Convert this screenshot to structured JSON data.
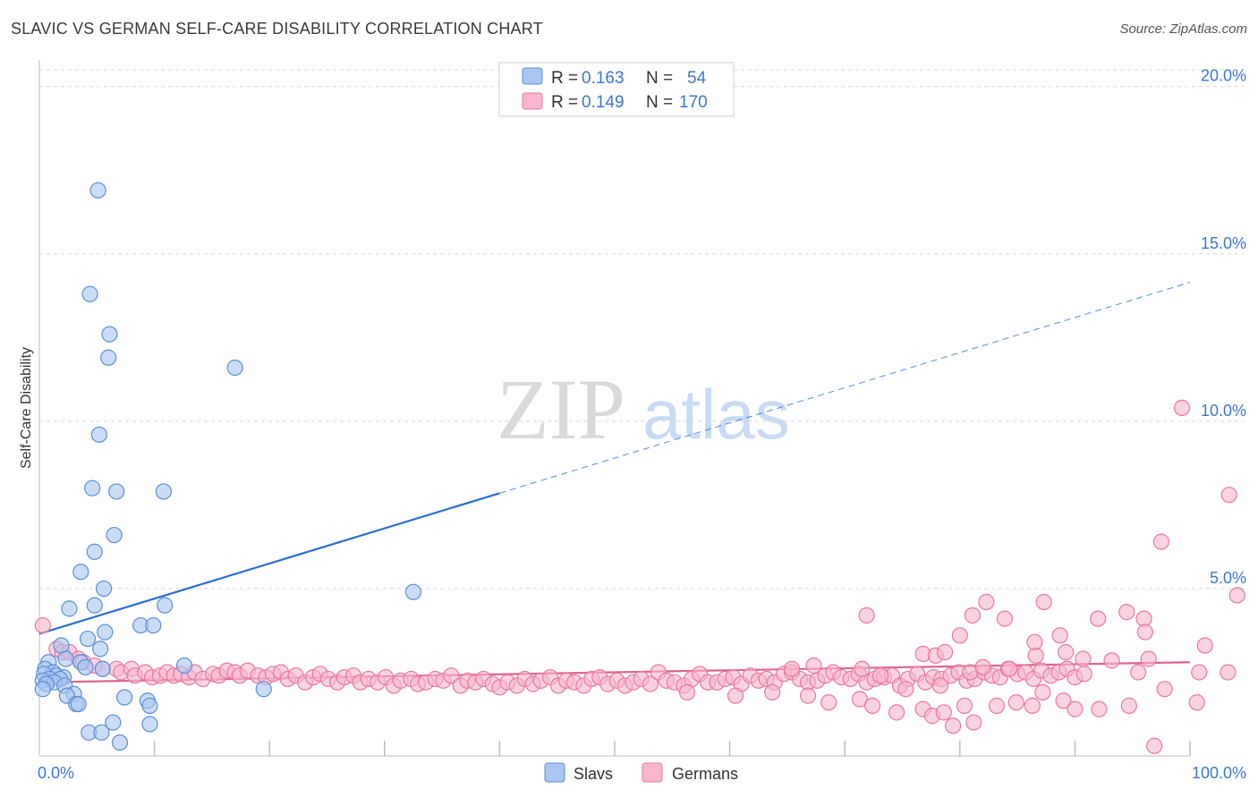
{
  "header": {
    "title": "SLAVIC VS GERMAN SELF-CARE DISABILITY CORRELATION CHART",
    "source": "Source: ZipAtlas.com"
  },
  "watermark": {
    "zip": "ZIP",
    "atlas": "atlas"
  },
  "stats": {
    "slavs": {
      "r_label": "R =",
      "r_value": "0.163",
      "n_label": "N =",
      "n_value": "54"
    },
    "germans": {
      "r_label": "R =",
      "r_value": "0.149",
      "n_label": "N =",
      "n_value": "170"
    }
  },
  "legend": {
    "slavs": "Slavs",
    "germans": "Germans"
  },
  "colors": {
    "slavs_fill": "#a9c7f0",
    "slavs_stroke": "#5b8fd6",
    "slavs_line": "#2a6fcf",
    "germans_fill": "#f7b6cb",
    "germans_stroke": "#e8799e",
    "germans_line": "#e0648e",
    "tick_text": "#3b78d0",
    "grid": "#d8d8d8"
  },
  "chart_data": {
    "type": "scatter",
    "title": "SLAVIC VS GERMAN SELF-CARE DISABILITY CORRELATION CHART",
    "xlabel": "",
    "ylabel": "Self-Care Disability",
    "xlim": [
      0,
      100
    ],
    "ylim": [
      0,
      20.5
    ],
    "x_tick_labels": [
      {
        "value": 0,
        "label": "0.0%"
      },
      {
        "value": 100,
        "label": "100.0%"
      }
    ],
    "y_ticks": [
      {
        "value": 5,
        "label": "5.0%"
      },
      {
        "value": 10,
        "label": "10.0%"
      },
      {
        "value": 15,
        "label": "15.0%"
      },
      {
        "value": 20,
        "label": "20.0%"
      }
    ],
    "series": [
      {
        "name": "Slavs",
        "trend": {
          "x0": 0,
          "y0": 3.65,
          "x1": 40,
          "y1": 7.85,
          "dash_x1": 100,
          "dash_y1": 14.15
        },
        "points": [
          [
            5.1,
            16.9
          ],
          [
            4.4,
            13.8
          ],
          [
            6.1,
            12.6
          ],
          [
            6.0,
            11.9
          ],
          [
            17.0,
            11.6
          ],
          [
            5.2,
            9.6
          ],
          [
            4.6,
            8.0
          ],
          [
            6.7,
            7.9
          ],
          [
            10.8,
            7.9
          ],
          [
            6.5,
            6.6
          ],
          [
            4.8,
            6.1
          ],
          [
            3.6,
            5.5
          ],
          [
            5.6,
            5.0
          ],
          [
            32.5,
            4.9
          ],
          [
            2.6,
            4.4
          ],
          [
            4.8,
            4.5
          ],
          [
            10.9,
            4.5
          ],
          [
            8.8,
            3.9
          ],
          [
            9.9,
            3.9
          ],
          [
            5.7,
            3.7
          ],
          [
            4.2,
            3.5
          ],
          [
            1.9,
            3.3
          ],
          [
            5.3,
            3.2
          ],
          [
            0.8,
            2.8
          ],
          [
            2.3,
            2.9
          ],
          [
            3.6,
            2.8
          ],
          [
            12.6,
            2.7
          ],
          [
            0.5,
            2.6
          ],
          [
            1.2,
            2.5
          ],
          [
            4.0,
            2.65
          ],
          [
            5.5,
            2.6
          ],
          [
            0.4,
            2.45
          ],
          [
            1.5,
            2.4
          ],
          [
            2.1,
            2.35
          ],
          [
            0.9,
            2.3
          ],
          [
            1.8,
            2.3
          ],
          [
            0.3,
            2.25
          ],
          [
            1.3,
            2.2
          ],
          [
            0.6,
            2.15
          ],
          [
            2.2,
            2.1
          ],
          [
            0.3,
            2.0
          ],
          [
            19.5,
            2.0
          ],
          [
            3.0,
            1.85
          ],
          [
            2.4,
            1.8
          ],
          [
            7.4,
            1.75
          ],
          [
            9.4,
            1.65
          ],
          [
            3.2,
            1.55
          ],
          [
            3.4,
            1.55
          ],
          [
            9.6,
            1.5
          ],
          [
            6.4,
            1.0
          ],
          [
            9.6,
            0.95
          ],
          [
            4.3,
            0.7
          ],
          [
            5.4,
            0.7
          ],
          [
            7.0,
            0.4
          ]
        ]
      },
      {
        "name": "Germans",
        "trend": {
          "x0": 0,
          "y0": 2.2,
          "x1": 100,
          "y1": 2.8
        },
        "points": [
          [
            0.3,
            3.9
          ],
          [
            1.5,
            3.2
          ],
          [
            2.0,
            3.1
          ],
          [
            2.6,
            3.1
          ],
          [
            3.4,
            2.9
          ],
          [
            3.8,
            2.8
          ],
          [
            4.8,
            2.7
          ],
          [
            5.5,
            2.6
          ],
          [
            6.7,
            2.6
          ],
          [
            7.1,
            2.5
          ],
          [
            8.0,
            2.6
          ],
          [
            8.3,
            2.4
          ],
          [
            9.2,
            2.5
          ],
          [
            9.8,
            2.35
          ],
          [
            10.5,
            2.4
          ],
          [
            11.1,
            2.5
          ],
          [
            11.7,
            2.4
          ],
          [
            12.3,
            2.45
          ],
          [
            13.0,
            2.35
          ],
          [
            13.5,
            2.5
          ],
          [
            14.2,
            2.3
          ],
          [
            15.1,
            2.45
          ],
          [
            15.6,
            2.4
          ],
          [
            16.3,
            2.55
          ],
          [
            17.0,
            2.5
          ],
          [
            17.4,
            2.4
          ],
          [
            18.1,
            2.55
          ],
          [
            19.0,
            2.4
          ],
          [
            19.7,
            2.35
          ],
          [
            20.3,
            2.45
          ],
          [
            21.0,
            2.5
          ],
          [
            21.6,
            2.3
          ],
          [
            22.3,
            2.4
          ],
          [
            23.1,
            2.2
          ],
          [
            23.8,
            2.35
          ],
          [
            24.4,
            2.45
          ],
          [
            25.1,
            2.3
          ],
          [
            25.9,
            2.2
          ],
          [
            26.5,
            2.35
          ],
          [
            27.3,
            2.4
          ],
          [
            27.9,
            2.2
          ],
          [
            28.6,
            2.3
          ],
          [
            29.4,
            2.2
          ],
          [
            30.1,
            2.35
          ],
          [
            30.8,
            2.1
          ],
          [
            31.4,
            2.25
          ],
          [
            32.3,
            2.3
          ],
          [
            32.9,
            2.15
          ],
          [
            33.6,
            2.2
          ],
          [
            34.4,
            2.3
          ],
          [
            35.1,
            2.25
          ],
          [
            35.8,
            2.4
          ],
          [
            36.6,
            2.1
          ],
          [
            37.2,
            2.25
          ],
          [
            37.9,
            2.2
          ],
          [
            38.6,
            2.3
          ],
          [
            39.4,
            2.15
          ],
          [
            40.0,
            2.05
          ],
          [
            40.7,
            2.2
          ],
          [
            41.5,
            2.1
          ],
          [
            42.2,
            2.3
          ],
          [
            42.9,
            2.15
          ],
          [
            43.6,
            2.25
          ],
          [
            44.4,
            2.35
          ],
          [
            45.1,
            2.1
          ],
          [
            45.8,
            2.25
          ],
          [
            46.5,
            2.2
          ],
          [
            47.3,
            2.1
          ],
          [
            48.0,
            2.3
          ],
          [
            48.7,
            2.35
          ],
          [
            49.4,
            2.15
          ],
          [
            50.2,
            2.25
          ],
          [
            50.9,
            2.1
          ],
          [
            51.6,
            2.2
          ],
          [
            52.3,
            2.3
          ],
          [
            53.1,
            2.15
          ],
          [
            53.8,
            2.5
          ],
          [
            54.5,
            2.25
          ],
          [
            55.2,
            2.2
          ],
          [
            56.0,
            2.1
          ],
          [
            56.7,
            2.3
          ],
          [
            57.4,
            2.45
          ],
          [
            58.1,
            2.2
          ],
          [
            58.9,
            2.2
          ],
          [
            59.6,
            2.3
          ],
          [
            60.3,
            2.35
          ],
          [
            61.0,
            2.15
          ],
          [
            61.8,
            2.4
          ],
          [
            62.5,
            2.25
          ],
          [
            63.2,
            2.3
          ],
          [
            63.9,
            2.2
          ],
          [
            64.7,
            2.45
          ],
          [
            65.4,
            2.5
          ],
          [
            66.1,
            2.3
          ],
          [
            66.8,
            2.2
          ],
          [
            67.6,
            2.25
          ],
          [
            68.3,
            2.4
          ],
          [
            69.0,
            2.5
          ],
          [
            69.7,
            2.35
          ],
          [
            70.5,
            2.3
          ],
          [
            71.2,
            2.45
          ],
          [
            71.9,
            2.2
          ],
          [
            72.6,
            2.3
          ],
          [
            73.4,
            2.35
          ],
          [
            74.1,
            2.4
          ],
          [
            74.8,
            2.1
          ],
          [
            75.5,
            2.3
          ],
          [
            76.3,
            2.45
          ],
          [
            77.0,
            2.2
          ],
          [
            77.7,
            2.35
          ],
          [
            78.4,
            2.3
          ],
          [
            79.2,
            2.4
          ],
          [
            79.9,
            2.5
          ],
          [
            80.6,
            2.25
          ],
          [
            81.3,
            2.3
          ],
          [
            82.1,
            2.5
          ],
          [
            82.8,
            2.4
          ],
          [
            83.5,
            2.35
          ],
          [
            84.2,
            2.6
          ],
          [
            85.0,
            2.45
          ],
          [
            85.7,
            2.5
          ],
          [
            86.4,
            2.3
          ],
          [
            87.1,
            2.55
          ],
          [
            87.9,
            2.4
          ],
          [
            88.6,
            2.5
          ],
          [
            89.3,
            2.6
          ],
          [
            90.0,
            2.35
          ],
          [
            90.8,
            2.45
          ],
          [
            56.3,
            1.9
          ],
          [
            60.5,
            1.8
          ],
          [
            63.7,
            1.9
          ],
          [
            66.8,
            1.8
          ],
          [
            68.6,
            1.6
          ],
          [
            71.3,
            1.7
          ],
          [
            72.4,
            1.5
          ],
          [
            74.5,
            1.3
          ],
          [
            76.8,
            1.4
          ],
          [
            77.6,
            1.2
          ],
          [
            78.6,
            1.3
          ],
          [
            79.4,
            0.9
          ],
          [
            80.4,
            1.5
          ],
          [
            81.2,
            1.0
          ],
          [
            83.2,
            1.5
          ],
          [
            84.9,
            1.6
          ],
          [
            86.3,
            1.5
          ],
          [
            87.2,
            1.9
          ],
          [
            89.0,
            1.65
          ],
          [
            90.0,
            1.4
          ],
          [
            92.1,
            1.4
          ],
          [
            94.7,
            1.5
          ],
          [
            96.9,
            0.3
          ],
          [
            97.8,
            2.0
          ],
          [
            100.6,
            1.6
          ],
          [
            65.4,
            2.6
          ],
          [
            67.3,
            2.7
          ],
          [
            71.5,
            2.6
          ],
          [
            73.1,
            2.4
          ],
          [
            75.3,
            2.0
          ],
          [
            76.8,
            3.05
          ],
          [
            77.9,
            3.0
          ],
          [
            78.3,
            2.1
          ],
          [
            80.0,
            3.6
          ],
          [
            80.9,
            2.5
          ],
          [
            82.0,
            2.65
          ],
          [
            84.3,
            2.6
          ],
          [
            86.6,
            3.0
          ],
          [
            89.2,
            3.1
          ],
          [
            90.7,
            2.9
          ],
          [
            92.0,
            4.1
          ],
          [
            94.5,
            4.3
          ],
          [
            96.0,
            4.1
          ],
          [
            93.2,
            2.85
          ],
          [
            95.5,
            2.5
          ],
          [
            82.3,
            4.6
          ],
          [
            83.9,
            4.1
          ],
          [
            86.5,
            3.4
          ],
          [
            88.7,
            3.6
          ],
          [
            71.9,
            4.2
          ],
          [
            81.1,
            4.2
          ],
          [
            78.7,
            3.1
          ],
          [
            96.4,
            2.9
          ],
          [
            87.3,
            4.6
          ],
          [
            96.1,
            3.7
          ],
          [
            97.5,
            6.4
          ],
          [
            99.3,
            10.4
          ],
          [
            103.4,
            7.8
          ],
          [
            104.1,
            4.8
          ],
          [
            103.3,
            2.5
          ],
          [
            101.3,
            3.3
          ],
          [
            100.8,
            2.5
          ]
        ]
      }
    ]
  }
}
